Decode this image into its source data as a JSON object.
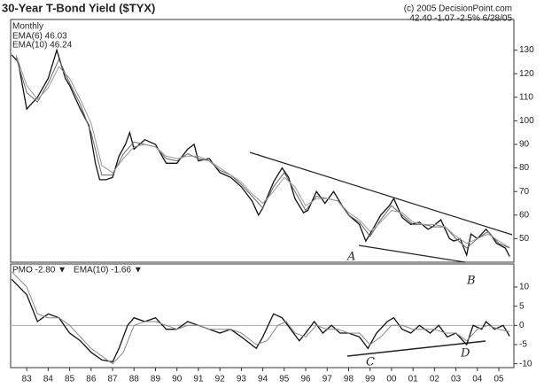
{
  "chart_data": [
    {
      "type": "line",
      "title": "30-Year T-Bond Yield ($TYX)",
      "subtitle": "Monthly",
      "source": "(c) 2005 DecisionPoint.com",
      "quote": "42.40 -1.07 -2.5% 6/28/05",
      "xlim": [
        1982.25,
        2005.7
      ],
      "ylim": [
        40,
        143
      ],
      "yticks": [
        50,
        60,
        70,
        80,
        90,
        100,
        110,
        120,
        130
      ],
      "annotations": [
        "A",
        "B"
      ],
      "series": [
        {
          "color": "#111",
          "x": [
            1982.3,
            1982.6,
            1983.0,
            1983.5,
            1984.0,
            1984.4,
            1984.8,
            1985.0,
            1985.5,
            1985.9,
            1986.2,
            1986.4,
            1986.7,
            1987.0,
            1987.3,
            1987.6,
            1987.8,
            1988.0,
            1988.5,
            1989.0,
            1989.5,
            1990.0,
            1990.5,
            1990.8,
            1991.0,
            1991.5,
            1992.0,
            1992.5,
            1993.0,
            1993.5,
            1993.8,
            1994.0,
            1994.5,
            1994.9,
            1995.2,
            1995.5,
            1995.9,
            1996.1,
            1996.5,
            1996.9,
            1997.3,
            1997.7,
            1998.0,
            1998.5,
            1998.8,
            1999.0,
            1999.5,
            1999.9,
            2000.1,
            2000.5,
            2000.9,
            2001.3,
            2001.7,
            2001.9,
            2002.3,
            2002.7,
            2002.9,
            2003.2,
            2003.5,
            2003.7,
            2004.0,
            2004.4,
            2004.6,
            2004.9,
            2005.1,
            2005.3,
            2005.5
          ],
          "values": [
            128,
            125,
            105,
            110,
            118,
            130,
            118,
            115,
            105,
            98,
            82,
            75,
            75,
            76,
            85,
            90,
            95,
            88,
            92,
            90,
            82,
            82,
            88,
            90,
            83,
            84,
            78,
            76,
            72,
            66,
            60,
            63,
            74,
            80,
            76,
            67,
            61,
            62,
            70,
            65,
            70,
            64,
            60,
            56,
            49,
            52,
            60,
            64,
            67,
            59,
            56,
            57,
            54,
            55,
            58,
            50,
            49,
            50,
            43,
            52,
            50,
            54,
            52,
            48,
            47,
            46,
            42.4
          ]
        },
        {
          "name": "EMA(6) 46.03",
          "color": "#666",
          "x": [
            1982.5,
            1983,
            1983.5,
            1984,
            1984.5,
            1985,
            1985.5,
            1986,
            1986.5,
            1987,
            1987.5,
            1988,
            1988.5,
            1989,
            1989.5,
            1990,
            1990.5,
            1991,
            1991.5,
            1992,
            1992.5,
            1993,
            1993.5,
            1994,
            1994.5,
            1995,
            1995.5,
            1996,
            1996.5,
            1997,
            1997.5,
            1998,
            1998.5,
            1999,
            1999.5,
            2000,
            2000.5,
            2001,
            2001.5,
            2002,
            2002.5,
            2003,
            2003.5,
            2004,
            2004.5,
            2005,
            2005.5
          ],
          "values": [
            127,
            112,
            108,
            116,
            126,
            116,
            107,
            95,
            77,
            77,
            86,
            91,
            90,
            89,
            84,
            83,
            86,
            84,
            83,
            79,
            77,
            73,
            68,
            63,
            72,
            78,
            70,
            62,
            68,
            67,
            66,
            60,
            57,
            51,
            58,
            64,
            60,
            56,
            56,
            55,
            55,
            50,
            46,
            50,
            53,
            48,
            46.03
          ]
        },
        {
          "name": "EMA(10) 46.24",
          "color": "#999",
          "x": [
            1982.5,
            1983,
            1983.5,
            1984,
            1984.5,
            1985,
            1985.5,
            1986,
            1986.5,
            1987,
            1987.5,
            1988,
            1988.5,
            1989,
            1989.5,
            1990,
            1990.5,
            1991,
            1991.5,
            1992,
            1992.5,
            1993,
            1993.5,
            1994,
            1994.5,
            1995,
            1995.5,
            1996,
            1996.5,
            1997,
            1997.5,
            1998,
            1998.5,
            1999,
            1999.5,
            2000,
            2000.5,
            2001,
            2001.5,
            2002,
            2002.5,
            2003,
            2003.5,
            2004,
            2004.5,
            2005,
            2005.5
          ],
          "values": [
            128,
            115,
            109,
            114,
            123,
            118,
            109,
            99,
            81,
            78,
            84,
            89,
            90,
            89,
            85,
            84,
            85,
            85,
            83,
            80,
            77,
            74,
            69,
            65,
            70,
            76,
            72,
            64,
            67,
            67,
            66,
            61,
            58,
            53,
            57,
            62,
            61,
            57,
            56,
            56,
            55,
            51,
            48,
            50,
            52,
            49,
            46.24
          ]
        }
      ]
    },
    {
      "type": "line",
      "xlim": [
        1982.25,
        2005.7
      ],
      "ylim": [
        -11,
        16
      ],
      "yticks": [
        10,
        5,
        0,
        -5,
        -10
      ],
      "xticks": [
        {
          "value": 1983,
          "label": "83"
        },
        {
          "value": 1984,
          "label": "84"
        },
        {
          "value": 1985,
          "label": "85"
        },
        {
          "value": 1986,
          "label": "86"
        },
        {
          "value": 1987,
          "label": "87"
        },
        {
          "value": 1988,
          "label": "88"
        },
        {
          "value": 1989,
          "label": "89"
        },
        {
          "value": 1990,
          "label": "90"
        },
        {
          "value": 1991,
          "label": "91"
        },
        {
          "value": 1992,
          "label": "92"
        },
        {
          "value": 1993,
          "label": "93"
        },
        {
          "value": 1994,
          "label": "94"
        },
        {
          "value": 1995,
          "label": "95"
        },
        {
          "value": 1996,
          "label": "96"
        },
        {
          "value": 1997,
          "label": "97"
        },
        {
          "value": 1998,
          "label": "98"
        },
        {
          "value": 1999,
          "label": "99"
        },
        {
          "value": 2000,
          "label": "00"
        },
        {
          "value": 2001,
          "label": "01"
        },
        {
          "value": 2002,
          "label": "02"
        },
        {
          "value": 2003,
          "label": "03"
        },
        {
          "value": 2004,
          "label": "04"
        },
        {
          "value": 2005,
          "label": "05"
        }
      ],
      "annotations": [
        "C",
        "D"
      ],
      "series": [
        {
          "name": "PMO -2.80 ▼",
          "color": "#111",
          "x": [
            1982.3,
            1983,
            1983.5,
            1984,
            1984.5,
            1985,
            1985.5,
            1986,
            1986.5,
            1987,
            1987.3,
            1987.7,
            1988,
            1988.5,
            1989,
            1989.5,
            1990,
            1990.5,
            1991,
            1991.5,
            1992,
            1992.5,
            1993,
            1993.7,
            1994,
            1994.5,
            1994.9,
            1995.3,
            1995.7,
            1996.0,
            1996.4,
            1996.8,
            1997.2,
            1997.6,
            1998,
            1998.5,
            1998.9,
            1999.3,
            1999.8,
            2000.1,
            2000.5,
            2000.9,
            2001.3,
            2001.8,
            2002.2,
            2002.6,
            2003.0,
            2003.5,
            2003.8,
            2004.2,
            2004.4,
            2004.8,
            2005.2,
            2005.5
          ],
          "values": [
            12,
            8,
            1,
            3,
            2,
            -2,
            -4,
            -7,
            -9,
            -9.5,
            -6,
            0,
            2,
            1,
            2,
            -1,
            -1,
            1,
            0,
            -1,
            -2,
            -1,
            -3,
            -6,
            -3,
            3,
            2,
            -1,
            -4,
            -2,
            1,
            -2,
            0,
            -2,
            -2,
            -3,
            -6,
            -2,
            1,
            2,
            -1,
            -2,
            0,
            -2,
            0,
            -3,
            -2,
            -5,
            0,
            -1,
            1,
            -1,
            0,
            -2.8
          ]
        },
        {
          "name": "EMA(10) -1.66 ▼",
          "color": "#888",
          "x": [
            1982.3,
            1983,
            1983.5,
            1984,
            1984.5,
            1985,
            1985.5,
            1986,
            1986.5,
            1987,
            1987.5,
            1988,
            1988.5,
            1989,
            1989.5,
            1990,
            1990.5,
            1991,
            1991.5,
            1992,
            1992.5,
            1993,
            1993.7,
            1994.2,
            1994.7,
            1995.1,
            1995.5,
            1996,
            1996.5,
            1997,
            1997.5,
            1998,
            1998.5,
            1999,
            1999.5,
            2000,
            2000.5,
            2001,
            2001.5,
            2002,
            2002.5,
            2003,
            2003.5,
            2004,
            2004.5,
            2005,
            2005.5
          ],
          "values": [
            14,
            10,
            3,
            2,
            2,
            0,
            -3,
            -6,
            -8,
            -10,
            -7,
            0,
            1,
            1,
            0,
            -1,
            0,
            0,
            -1,
            -1,
            -1,
            -2,
            -5,
            -4,
            0,
            1,
            -2,
            -3,
            0,
            -1,
            -1,
            -2,
            -2,
            -5,
            -3,
            0,
            0,
            -1,
            -1,
            -1,
            -2,
            -2,
            -4,
            -1,
            0,
            -1,
            -1.66
          ]
        }
      ]
    }
  ]
}
